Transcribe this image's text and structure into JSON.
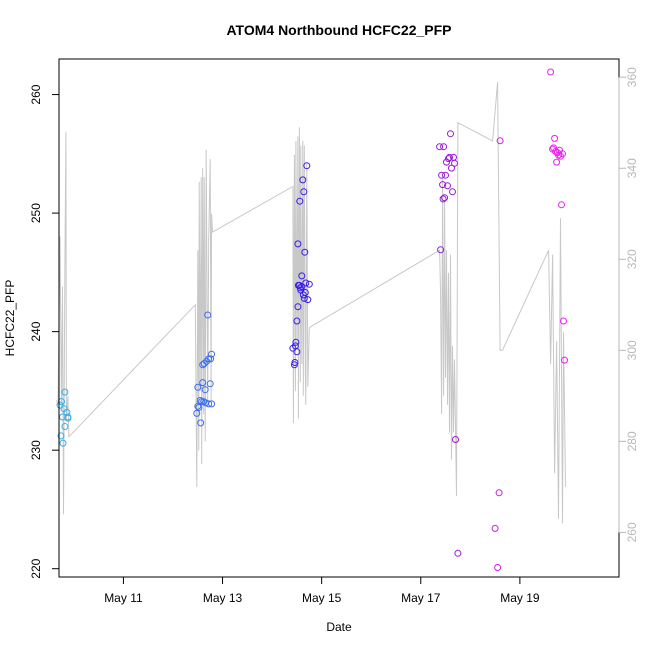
{
  "chart_data": {
    "type": "scatter",
    "title": "ATOM4 Northbound HCFC22_PFP",
    "xlabel": "Date",
    "ylabel": "HCFC22_PFP",
    "x_tick_labels": [
      "May 11",
      "May 13",
      "May 15",
      "May 17",
      "May 19"
    ],
    "x_tick_values": [
      11,
      13,
      15,
      17,
      19
    ],
    "xlim": [
      9.7,
      21.0
    ],
    "ylim": [
      219.3,
      263.0
    ],
    "y_ticks": [
      220,
      230,
      240,
      250,
      260
    ],
    "y2_ticks": [
      260,
      280,
      300,
      320,
      340,
      360
    ],
    "y2lim": [
      250.2,
      364.0
    ],
    "grid": false,
    "points_series": {
      "name": "",
      "x": [
        9.72,
        9.75,
        9.74,
        9.77,
        9.78,
        9.8,
        9.82,
        9.82,
        9.86,
        9.88,
        9.88,
        12.48,
        12.5,
        12.5,
        12.52,
        12.55,
        12.56,
        12.58,
        12.6,
        12.6,
        12.62,
        12.63,
        12.65,
        12.66,
        12.68,
        12.7,
        12.72,
        12.72,
        12.75,
        12.76,
        12.78,
        12.78,
        14.42,
        14.45,
        14.46,
        14.47,
        14.48,
        14.5,
        14.5,
        14.52,
        14.52,
        14.53,
        14.55,
        14.56,
        14.57,
        14.58,
        14.6,
        14.6,
        14.62,
        14.63,
        14.64,
        14.65,
        14.66,
        14.67,
        14.68,
        14.7,
        14.72,
        14.75,
        17.38,
        17.4,
        17.42,
        17.44,
        17.45,
        17.46,
        17.48,
        17.5,
        17.52,
        17.54,
        17.56,
        17.58,
        17.6,
        17.62,
        17.64,
        17.66,
        17.68,
        17.7,
        17.75,
        18.5,
        18.55,
        18.58,
        18.6,
        19.62,
        19.66,
        19.68,
        19.7,
        19.72,
        19.74,
        19.76,
        19.78,
        19.8,
        19.82,
        19.84,
        19.86,
        19.88,
        19.9
      ],
      "y": [
        233.8,
        234.1,
        231.2,
        232.8,
        230.6,
        233.5,
        234.9,
        232.0,
        233.2,
        232.8,
        232.7,
        233.1,
        233.7,
        235.3,
        233.6,
        234.2,
        232.3,
        234.1,
        237.2,
        235.7,
        234.1,
        237.3,
        235.1,
        234.0,
        237.5,
        241.4,
        233.9,
        237.7,
        235.6,
        237.7,
        238.1,
        233.9,
        238.6,
        237.2,
        237.4,
        238.8,
        239.1,
        238.3,
        240.9,
        242.1,
        247.4,
        243.9,
        243.9,
        251.0,
        243.7,
        243.5,
        243.8,
        244.7,
        252.8,
        243.1,
        251.8,
        242.8,
        246.7,
        243.3,
        244.1,
        254.0,
        242.7,
        244.0,
        255.6,
        246.9,
        253.2,
        252.4,
        251.2,
        255.6,
        251.3,
        253.2,
        254.3,
        252.3,
        254.6,
        254.7,
        256.7,
        253.8,
        251.8,
        254.7,
        254.2,
        230.9,
        221.3,
        223.4,
        220.1,
        226.4,
        256.1,
        261.9,
        255.4,
        255.5,
        256.3,
        255.2,
        254.3,
        255.1,
        254.9,
        255.3,
        254.8,
        250.7,
        255.0,
        240.9,
        237.6
      ],
      "colors": [
        "#39b0e8",
        "#39b0e8",
        "#39b0e8",
        "#39b0e8",
        "#39b0e8",
        "#39b0e8",
        "#39b0e8",
        "#39b0e8",
        "#39b0e8",
        "#39b0e8",
        "#39b0e8",
        "#3d6ee8",
        "#3d6ee8",
        "#3d6ee8",
        "#3d6ee8",
        "#3d6ee8",
        "#3d6ee8",
        "#3d6ee8",
        "#3d6ee8",
        "#3d6ee8",
        "#3d6ee8",
        "#3d6ee8",
        "#3d6ee8",
        "#3d6ee8",
        "#3d6ee8",
        "#3d6ee8",
        "#3d6ee8",
        "#3d6ee8",
        "#3d6ee8",
        "#3d6ee8",
        "#3d6ee8",
        "#3d6ee8",
        "#3a1ee8",
        "#3a1ee8",
        "#3a1ee8",
        "#3a1ee8",
        "#3a1ee8",
        "#3a1ee8",
        "#3a1ee8",
        "#3a1ee8",
        "#3a1ee8",
        "#3a1ee8",
        "#3a1ee8",
        "#3a1ee8",
        "#3a1ee8",
        "#3a1ee8",
        "#3a1ee8",
        "#3a1ee8",
        "#3a1ee8",
        "#3a1ee8",
        "#3a1ee8",
        "#3a1ee8",
        "#3a1ee8",
        "#3a1ee8",
        "#3a1ee8",
        "#3a1ee8",
        "#3a1ee8",
        "#3a1ee8",
        "#9a1ad8",
        "#9a1ad8",
        "#9a1ad8",
        "#9a1ad8",
        "#9a1ad8",
        "#9a1ad8",
        "#9a1ad8",
        "#9a1ad8",
        "#9a1ad8",
        "#9a1ad8",
        "#9a1ad8",
        "#9a1ad8",
        "#9a1ad8",
        "#9a1ad8",
        "#9a1ad8",
        "#9a1ad8",
        "#9a1ad8",
        "#9a1ad8",
        "#9a1ad8",
        "#d01ee0",
        "#d01ee0",
        "#d01ee0",
        "#d01ee0",
        "#ee20ee",
        "#ee20ee",
        "#ee20ee",
        "#ee20ee",
        "#ee20ee",
        "#ee20ee",
        "#ee20ee",
        "#ee20ee",
        "#ee20ee",
        "#ee20ee",
        "#ee20ee",
        "#ee20ee",
        "#ee20ee",
        "#ee20ee"
      ]
    },
    "line_series": {
      "name": "",
      "color": "#c8c8c8",
      "axis": "right",
      "x": [
        9.65,
        9.68,
        9.72,
        9.75,
        9.77,
        9.79,
        9.82,
        9.84,
        9.85,
        9.88,
        9.9,
        12.45,
        12.48,
        12.5,
        12.52,
        12.53,
        12.55,
        12.57,
        12.58,
        12.6,
        12.62,
        12.63,
        12.65,
        12.67,
        12.7,
        12.72,
        12.75,
        12.77,
        12.78,
        12.8,
        14.42,
        14.43,
        14.45,
        14.47,
        14.48,
        14.5,
        14.52,
        14.53,
        14.55,
        14.57,
        14.58,
        14.6,
        14.62,
        14.63,
        14.65,
        14.67,
        14.68,
        14.7,
        14.72,
        14.75,
        17.38,
        17.4,
        17.42,
        17.44,
        17.46,
        17.48,
        17.5,
        17.52,
        17.54,
        17.56,
        17.58,
        17.6,
        17.62,
        17.64,
        17.66,
        17.68,
        17.72,
        17.75,
        18.45,
        18.55,
        18.6,
        18.65,
        19.58,
        19.62,
        19.66,
        19.7,
        19.74,
        19.78,
        19.82,
        19.86,
        19.88,
        19.92
      ],
      "y": [
        289,
        288,
        325,
        287,
        314,
        264,
        318,
        348,
        285,
        290,
        281,
        310,
        270,
        322,
        278,
        337,
        291,
        338,
        275,
        340,
        286,
        338,
        280,
        344,
        288,
        324,
        342,
        289,
        330,
        326,
        336,
        284,
        343,
        291,
        346,
        301,
        347,
        285,
        349,
        293,
        345,
        297,
        346,
        290,
        345,
        296,
        288,
        341,
        292,
        305,
        322,
        312,
        286,
        338,
        290,
        333,
        294,
        322,
        288,
        317,
        282,
        321,
        276,
        301,
        282,
        298,
        268,
        350,
        346,
        359,
        300,
        300,
        322,
        297,
        321,
        273,
        302,
        263,
        329,
        262,
        304,
        270
      ]
    }
  }
}
